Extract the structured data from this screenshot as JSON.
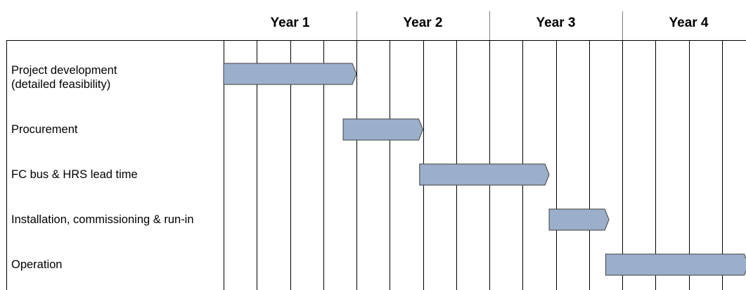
{
  "chart_data": {
    "type": "gantt",
    "time_unit": "quarter",
    "periods": [
      {
        "label": "Year 1",
        "start": 0,
        "end": 4
      },
      {
        "label": "Year 2",
        "start": 4,
        "end": 8
      },
      {
        "label": "Year 3",
        "start": 8,
        "end": 12
      },
      {
        "label": "Year 4",
        "start": 12,
        "end": 16
      }
    ],
    "tasks": [
      {
        "name": "Project development\n(detailed feasibility)",
        "start": 0,
        "end": 4
      },
      {
        "name": "Procurement",
        "start": 3.6,
        "end": 6
      },
      {
        "name": "FC bus & HRS lead time",
        "start": 5.9,
        "end": 9.8
      },
      {
        "name": "Installation, commissioning & run-in",
        "start": 9.8,
        "end": 11.6
      },
      {
        "name": "Operation",
        "start": 11.5,
        "end": 15.8
      }
    ],
    "colors": {
      "bar_fill": "#9bafcb",
      "bar_stroke": "#3f3f3f",
      "grid": "#000000",
      "divider": "#808080"
    }
  }
}
